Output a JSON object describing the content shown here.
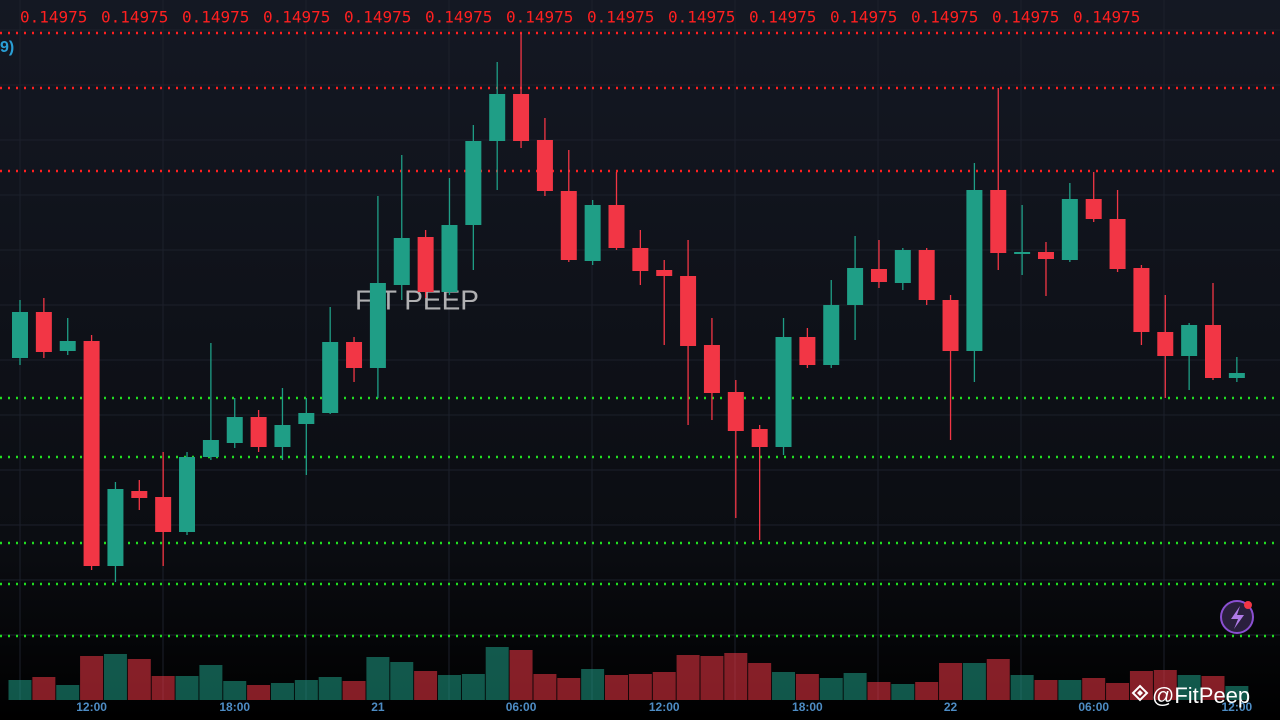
{
  "chart_data": {
    "type": "candlestick",
    "legend_fragment": "9)",
    "watermark": "FIT PEEP",
    "handle": "@FitPeep",
    "level_label": "0.14975",
    "categories": [
      null,
      null,
      null,
      "12:00",
      null,
      null,
      null,
      null,
      null,
      "18:00",
      null,
      null,
      null,
      null,
      null,
      "21",
      null,
      null,
      null,
      null,
      null,
      "06:00",
      null,
      null,
      null,
      null,
      null,
      "12:00",
      null,
      null,
      null,
      null,
      null,
      "18:00",
      null,
      null,
      null,
      null,
      null,
      "22",
      null,
      null,
      null,
      null,
      null,
      "06:00",
      null,
      null,
      null,
      null,
      null,
      "12:00"
    ],
    "open": [
      282,
      328,
      289,
      299,
      74,
      149,
      143,
      108,
      183,
      197,
      223,
      193,
      216,
      227,
      298,
      272,
      355,
      403,
      348,
      415,
      499,
      546,
      500,
      449,
      379,
      435,
      392,
      370,
      364,
      295,
      248,
      211,
      193,
      303,
      275,
      335,
      371,
      357,
      390,
      340,
      289,
      450,
      386,
      388,
      380,
      441,
      421,
      372,
      308,
      284,
      315,
      262
    ],
    "high": [
      340,
      342,
      322,
      305,
      158,
      160,
      188,
      188,
      297,
      242,
      230,
      252,
      242,
      333,
      303,
      444,
      485,
      410,
      462,
      515,
      578,
      607,
      522,
      490,
      440,
      468,
      410,
      380,
      400,
      322,
      260,
      215,
      322,
      312,
      360,
      404,
      400,
      392,
      392,
      345,
      477,
      552,
      435,
      398,
      457,
      468,
      450,
      375,
      345,
      317,
      357,
      283
    ],
    "low": [
      275,
      282,
      285,
      70,
      58,
      130,
      74,
      105,
      180,
      192,
      188,
      180,
      165,
      226,
      258,
      242,
      340,
      342,
      345,
      370,
      450,
      492,
      444,
      378,
      375,
      390,
      355,
      295,
      215,
      220,
      122,
      100,
      185,
      272,
      272,
      300,
      352,
      350,
      335,
      200,
      258,
      370,
      365,
      344,
      378,
      418,
      368,
      295,
      242,
      250,
      260,
      258
    ],
    "close": [
      328,
      288,
      299,
      74,
      151,
      142,
      108,
      183,
      200,
      223,
      193,
      215,
      227,
      298,
      272,
      357,
      402,
      348,
      415,
      499,
      546,
      499,
      449,
      380,
      435,
      392,
      369,
      364,
      294,
      247,
      209,
      193,
      303,
      275,
      335,
      372,
      358,
      390,
      340,
      289,
      450,
      387,
      388,
      381,
      441,
      421,
      371,
      308,
      284,
      315,
      262,
      267
    ],
    "volume": [
      10,
      13,
      5,
      34,
      36,
      31,
      14,
      14,
      25,
      9,
      5,
      7,
      10,
      13,
      9,
      33,
      28,
      19,
      15,
      16,
      43,
      40,
      16,
      12,
      21,
      15,
      16,
      18,
      35,
      34,
      37,
      27,
      18,
      16,
      12,
      17,
      8,
      6,
      8,
      27,
      27,
      31,
      15,
      10,
      10,
      12,
      7,
      19,
      20,
      15,
      14,
      4
    ],
    "ylim": [
      0,
      640
    ],
    "volume_ylim": [
      0,
      50
    ],
    "up_color": "#1f9e86",
    "down_color": "#f23645",
    "levels": [
      {
        "value": 607,
        "color": "#ff2020"
      },
      {
        "value": 552,
        "color": "#ff2020"
      },
      {
        "value": 469,
        "color": "#ff2020"
      },
      {
        "value": 242,
        "color": "#22dd22"
      },
      {
        "value": 183,
        "color": "#22dd22"
      },
      {
        "value": 97,
        "color": "#22dd22"
      },
      {
        "value": 56,
        "color": "#22dd22"
      },
      {
        "value": 4,
        "color": "#22dd22"
      }
    ]
  }
}
